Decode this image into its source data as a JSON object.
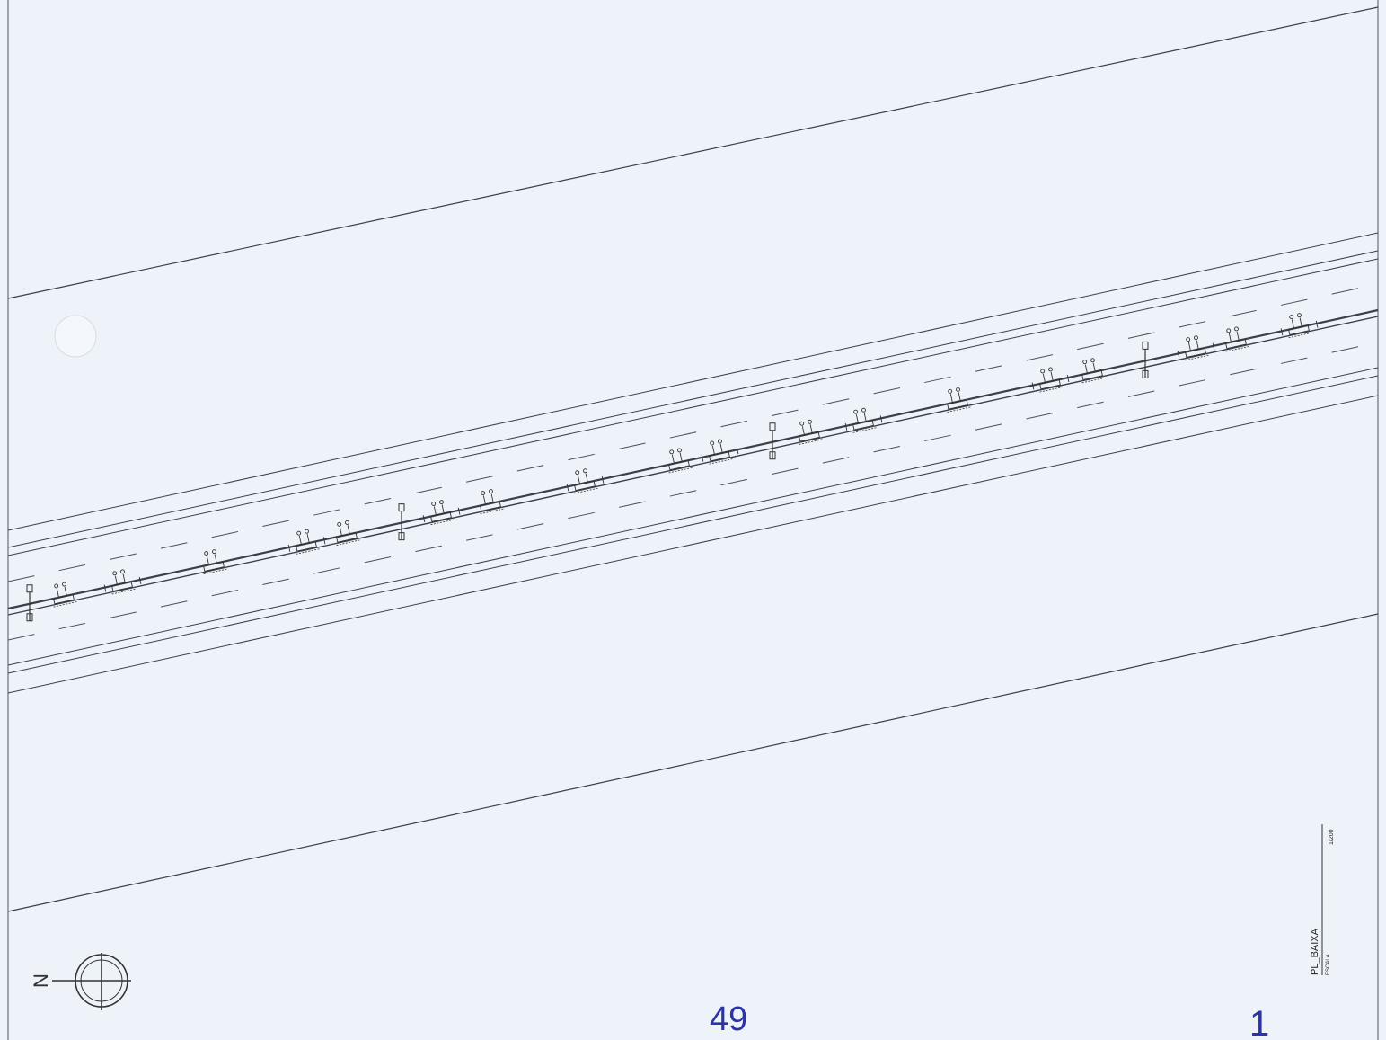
{
  "title_block": {
    "drawing_name": "PL_BAIXA",
    "scale_label": "ESCALA",
    "scale_value": "1/200"
  },
  "north_arrow": {
    "label": "N",
    "icon": "north-arrow-icon"
  },
  "handwritten": {
    "page_number": "49",
    "mark": "1"
  },
  "colors": {
    "paper": "#eef3f9",
    "ink": "#3a3f4a",
    "pen": "#2a33a8"
  }
}
